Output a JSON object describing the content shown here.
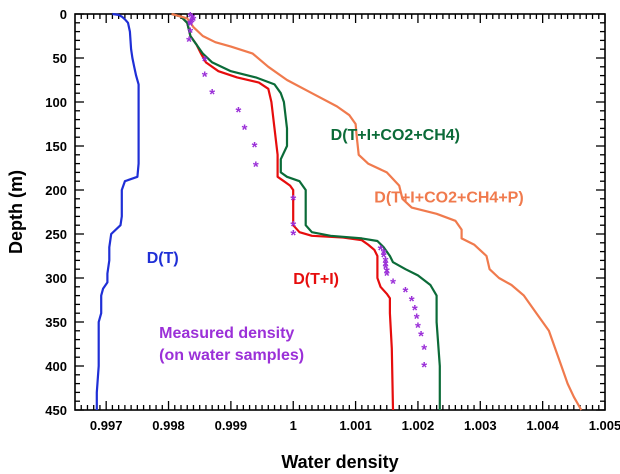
{
  "chart_data": {
    "type": "line",
    "title": "",
    "xlabel": "Water density",
    "ylabel": "Depth (m)",
    "xlim": [
      0.9965,
      1.005
    ],
    "ylim": [
      0,
      450
    ],
    "y_inverted": true,
    "x_ticks": [
      0.997,
      0.998,
      0.999,
      1,
      1.001,
      1.002,
      1.003,
      1.004,
      1.005
    ],
    "x_tick_labels": [
      "0.997",
      "0.998",
      "0.999",
      "1",
      "1.001",
      "1.002",
      "1.003",
      "1.004",
      "1.005"
    ],
    "y_ticks": [
      0,
      50,
      100,
      150,
      200,
      250,
      300,
      350,
      400,
      450
    ],
    "y_tick_labels": [
      "0",
      "50",
      "100",
      "150",
      "200",
      "250",
      "300",
      "350",
      "400",
      "450"
    ],
    "grid": false,
    "series": [
      {
        "name": "D(T)",
        "color": "#1f2fd6",
        "points": [
          [
            0.9971,
            0
          ],
          [
            0.9972,
            1
          ],
          [
            0.99725,
            3
          ],
          [
            0.9973,
            6
          ],
          [
            0.99735,
            10
          ],
          [
            0.99738,
            20
          ],
          [
            0.9974,
            40
          ],
          [
            0.99742,
            50
          ],
          [
            0.99745,
            60
          ],
          [
            0.99748,
            70
          ],
          [
            0.99752,
            80
          ],
          [
            0.99752,
            100
          ],
          [
            0.99752,
            140
          ],
          [
            0.99752,
            170
          ],
          [
            0.9975,
            185
          ],
          [
            0.9973,
            190
          ],
          [
            0.99725,
            200
          ],
          [
            0.99725,
            215
          ],
          [
            0.99725,
            230
          ],
          [
            0.99723,
            240
          ],
          [
            0.99708,
            250
          ],
          [
            0.99705,
            265
          ],
          [
            0.99705,
            280
          ],
          [
            0.99702,
            295
          ],
          [
            0.99702,
            305
          ],
          [
            0.99695,
            312
          ],
          [
            0.99692,
            320
          ],
          [
            0.99692,
            340
          ],
          [
            0.99688,
            350
          ],
          [
            0.99688,
            400
          ],
          [
            0.99685,
            430
          ],
          [
            0.99685,
            450
          ]
        ]
      },
      {
        "name": "D(T+I)",
        "color": "#e60d0d",
        "points": [
          [
            0.99805,
            0
          ],
          [
            0.9982,
            3
          ],
          [
            0.9983,
            10
          ],
          [
            0.99835,
            25
          ],
          [
            0.99845,
            35
          ],
          [
            0.99852,
            45
          ],
          [
            0.9986,
            55
          ],
          [
            0.9988,
            65
          ],
          [
            0.9991,
            72
          ],
          [
            0.99945,
            78
          ],
          [
            0.9996,
            85
          ],
          [
            0.99965,
            100
          ],
          [
            0.9997,
            130
          ],
          [
            0.99975,
            160
          ],
          [
            0.99975,
            185
          ],
          [
            0.99985,
            190
          ],
          [
            0.99995,
            195
          ],
          [
            1.0,
            200
          ],
          [
            1.0,
            220
          ],
          [
            1.0,
            240
          ],
          [
            1.0001,
            248
          ],
          [
            1.0003,
            252
          ],
          [
            1.0008,
            254
          ],
          [
            1.0011,
            257
          ],
          [
            1.0012,
            262
          ],
          [
            1.0013,
            268
          ],
          [
            1.00135,
            275
          ],
          [
            1.00135,
            300
          ],
          [
            1.0014,
            310
          ],
          [
            1.0015,
            318
          ],
          [
            1.00155,
            323
          ],
          [
            1.00155,
            340
          ],
          [
            1.00158,
            380
          ],
          [
            1.0016,
            450
          ]
        ]
      },
      {
        "name": "D(T+I+CO2+CH4)",
        "color": "#0b6b38",
        "points": [
          [
            0.99805,
            0
          ],
          [
            0.9982,
            3
          ],
          [
            0.9983,
            10
          ],
          [
            0.99835,
            25
          ],
          [
            0.99845,
            35
          ],
          [
            0.99855,
            45
          ],
          [
            0.9987,
            55
          ],
          [
            0.999,
            65
          ],
          [
            0.9994,
            72
          ],
          [
            0.9997,
            80
          ],
          [
            0.9998,
            90
          ],
          [
            0.99985,
            100
          ],
          [
            0.9999,
            130
          ],
          [
            0.9999,
            150
          ],
          [
            0.9998,
            165
          ],
          [
            0.9998,
            180
          ],
          [
            0.9999,
            185
          ],
          [
            1.0001,
            190
          ],
          [
            1.0002,
            200
          ],
          [
            1.0002,
            220
          ],
          [
            1.0002,
            240
          ],
          [
            1.0003,
            248
          ],
          [
            1.0006,
            252
          ],
          [
            1.0011,
            255
          ],
          [
            1.00135,
            258
          ],
          [
            1.00145,
            265
          ],
          [
            1.00155,
            275
          ],
          [
            1.0016,
            282
          ],
          [
            1.0018,
            290
          ],
          [
            1.002,
            297
          ],
          [
            1.0022,
            308
          ],
          [
            1.0023,
            320
          ],
          [
            1.0023,
            350
          ],
          [
            1.00235,
            400
          ],
          [
            1.00235,
            450
          ]
        ]
      },
      {
        "name": "D(T+I+CO2+CH4+P)",
        "color": "#f07a4d",
        "points": [
          [
            0.99805,
            0
          ],
          [
            0.9982,
            3
          ],
          [
            0.9983,
            5
          ],
          [
            0.9984,
            15
          ],
          [
            0.99855,
            25
          ],
          [
            0.99875,
            32
          ],
          [
            0.999,
            37
          ],
          [
            0.99935,
            45
          ],
          [
            0.9996,
            60
          ],
          [
            0.9999,
            75
          ],
          [
            1.0003,
            90
          ],
          [
            1.0007,
            105
          ],
          [
            1.0009,
            115
          ],
          [
            1.001,
            125
          ],
          [
            1.00102,
            140
          ],
          [
            1.00105,
            160
          ],
          [
            1.0012,
            170
          ],
          [
            1.0015,
            180
          ],
          [
            1.0017,
            195
          ],
          [
            1.00175,
            210
          ],
          [
            1.0019,
            220
          ],
          [
            1.0023,
            227
          ],
          [
            1.0026,
            235
          ],
          [
            1.0027,
            245
          ],
          [
            1.0027,
            255
          ],
          [
            1.0029,
            262
          ],
          [
            1.0031,
            275
          ],
          [
            1.00315,
            290
          ],
          [
            1.0033,
            300
          ],
          [
            1.0035,
            308
          ],
          [
            1.0037,
            320
          ],
          [
            1.0039,
            340
          ],
          [
            1.0041,
            360
          ],
          [
            1.0043,
            400
          ],
          [
            1.0044,
            420
          ],
          [
            1.0045,
            435
          ],
          [
            1.00462,
            450
          ]
        ]
      }
    ],
    "measured": {
      "name": "Measured density\n(on water samples)",
      "color": "#9b30d8",
      "marker": "*",
      "points": [
        [
          0.99835,
          2
        ],
        [
          0.99838,
          4
        ],
        [
          0.9984,
          6
        ],
        [
          0.99838,
          8
        ],
        [
          0.99835,
          10
        ],
        [
          0.99835,
          12
        ],
        [
          0.99835,
          20
        ],
        [
          0.99833,
          30
        ],
        [
          0.99858,
          52
        ],
        [
          0.99858,
          70
        ],
        [
          0.9987,
          90
        ],
        [
          0.99912,
          110
        ],
        [
          0.99922,
          130
        ],
        [
          0.99938,
          150
        ],
        [
          0.9994,
          172
        ],
        [
          1.0,
          210
        ],
        [
          1.0,
          240
        ],
        [
          1.0,
          250
        ],
        [
          1.0014,
          267
        ],
        [
          1.00145,
          271
        ],
        [
          1.00145,
          275
        ],
        [
          1.00148,
          280
        ],
        [
          1.00148,
          284
        ],
        [
          1.00148,
          288
        ],
        [
          1.0015,
          292
        ],
        [
          1.0015,
          296
        ],
        [
          1.0016,
          305
        ],
        [
          1.0018,
          315
        ],
        [
          1.0019,
          325
        ],
        [
          1.00195,
          335
        ],
        [
          1.00198,
          345
        ],
        [
          1.002,
          355
        ],
        [
          1.00205,
          365
        ],
        [
          1.0021,
          380
        ],
        [
          1.0021,
          400
        ]
      ]
    },
    "annotations": [
      {
        "text": "D(T)",
        "x": 0.99765,
        "y": 283,
        "color": "#1f2fd6"
      },
      {
        "text": "D(T+I)",
        "x": 1.0,
        "y": 307,
        "color": "#e60d0d"
      },
      {
        "text": "D(T+I+CO2+CH4)",
        "x": 1.0006,
        "y": 143,
        "color": "#0b6b38"
      },
      {
        "text": "D(T+I+CO2+CH4+P)",
        "x": 1.0013,
        "y": 214,
        "color": "#f07a4d"
      },
      {
        "text": "Measured density",
        "x": 0.99785,
        "y": 368,
        "color": "#9b30d8"
      },
      {
        "text": "(on water samples)",
        "x": 0.99785,
        "y": 393,
        "color": "#9b30d8"
      }
    ]
  }
}
